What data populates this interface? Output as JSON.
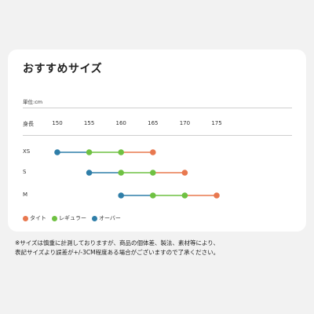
{
  "card": {
    "title": "おすすめサイズ",
    "unit_label": "単位:cm",
    "axis_label": "身長"
  },
  "chart_data": {
    "type": "scatter",
    "x_ticks": [
      150,
      155,
      160,
      165,
      170,
      175
    ],
    "xlim": [
      150,
      175
    ],
    "sizes": [
      {
        "name": "XS",
        "points": [
          {
            "x": 150,
            "fit": "over"
          },
          {
            "x": 155,
            "fit": "regular"
          },
          {
            "x": 160,
            "fit": "regular"
          },
          {
            "x": 165,
            "fit": "tight"
          }
        ]
      },
      {
        "name": "S",
        "points": [
          {
            "x": 155,
            "fit": "over"
          },
          {
            "x": 160,
            "fit": "regular"
          },
          {
            "x": 165,
            "fit": "regular"
          },
          {
            "x": 170,
            "fit": "tight"
          }
        ]
      },
      {
        "name": "M",
        "points": [
          {
            "x": 160,
            "fit": "over"
          },
          {
            "x": 165,
            "fit": "regular"
          },
          {
            "x": 170,
            "fit": "regular"
          },
          {
            "x": 175,
            "fit": "tight"
          }
        ]
      }
    ],
    "legend": [
      {
        "key": "tight",
        "label": "タイト",
        "color": "#e8784f"
      },
      {
        "key": "regular",
        "label": "レギュラー",
        "color": "#6fc142"
      },
      {
        "key": "over",
        "label": "オーバー",
        "color": "#2f7ea8"
      }
    ],
    "legend_position": "bottom-left"
  },
  "notes": [
    "※サイズは慎重に計測しておりますが、商品の個体差、製法、素材等により、",
    "表記サイズより誤差が+/-3CM程度ある場合がございますので了承ください。"
  ]
}
